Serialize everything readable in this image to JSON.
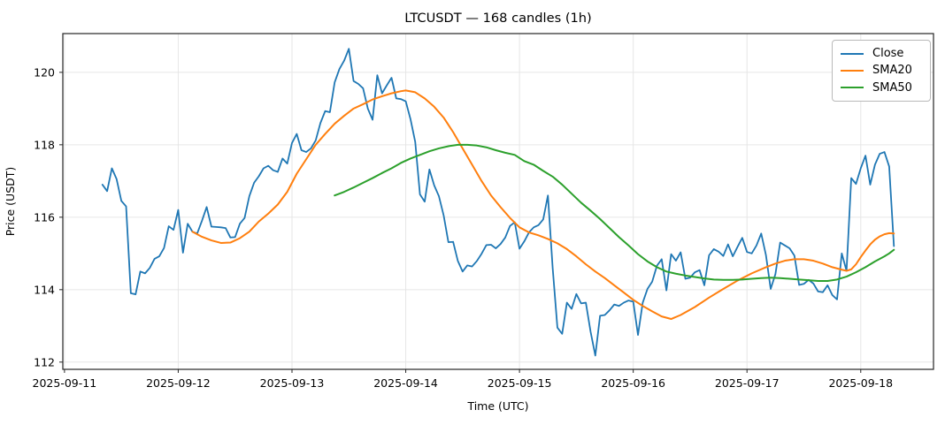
{
  "chart": {
    "title": "LTCUSDT — 168 candles (1h)",
    "xlabel": "Time (UTC)",
    "ylabel": "Price (USDT)"
  },
  "legend": {
    "entries": [
      {
        "label": "Close",
        "color": "#1f77b4"
      },
      {
        "label": "SMA20",
        "color": "#ff7f0e"
      },
      {
        "label": "SMA50",
        "color": "#2ca02c"
      }
    ]
  },
  "chart_data": {
    "type": "line",
    "title": "LTCUSDT — 168 candles (1h)",
    "xlabel": "Time (UTC)",
    "ylabel": "Price (USDT)",
    "grid": true,
    "legend_position": "upper right",
    "x_unit": "hours since first candle (2025-09-11, hourly)",
    "xlim_hours": [
      -8.35,
      175.35
    ],
    "ylim": [
      111.8,
      121.07
    ],
    "y_ticks": [
      112,
      114,
      116,
      118,
      120
    ],
    "x_ticks": [
      {
        "label": "2025-09-11",
        "hour": -8
      },
      {
        "label": "2025-09-12",
        "hour": 16
      },
      {
        "label": "2025-09-13",
        "hour": 40
      },
      {
        "label": "2025-09-14",
        "hour": 64
      },
      {
        "label": "2025-09-15",
        "hour": 88
      },
      {
        "label": "2025-09-16",
        "hour": 112
      },
      {
        "label": "2025-09-17",
        "hour": 136
      },
      {
        "label": "2025-09-18",
        "hour": 160
      }
    ],
    "series": [
      {
        "name": "Close",
        "color": "#1f77b4",
        "line_width": 1.8,
        "start_hour": 0,
        "step_hours": 1,
        "values": [
          116.9,
          116.72,
          117.35,
          117.05,
          116.45,
          116.3,
          113.9,
          113.87,
          114.5,
          114.45,
          114.6,
          114.85,
          114.92,
          115.15,
          115.75,
          115.65,
          116.2,
          115.02,
          115.82,
          115.6,
          115.55,
          115.9,
          116.28,
          115.74,
          115.73,
          115.72,
          115.7,
          115.44,
          115.45,
          115.82,
          115.98,
          116.58,
          116.95,
          117.13,
          117.35,
          117.42,
          117.3,
          117.25,
          117.62,
          117.48,
          118.05,
          118.3,
          117.85,
          117.8,
          117.9,
          118.12,
          118.6,
          118.93,
          118.9,
          119.72,
          120.09,
          120.32,
          120.65,
          119.76,
          119.68,
          119.56,
          119.0,
          118.69,
          119.92,
          119.42,
          119.64,
          119.85,
          119.28,
          119.26,
          119.2,
          118.71,
          118.08,
          116.63,
          116.43,
          117.32,
          116.88,
          116.58,
          116.05,
          115.31,
          115.32,
          114.79,
          114.5,
          114.67,
          114.64,
          114.79,
          114.99,
          115.23,
          115.24,
          115.14,
          115.26,
          115.44,
          115.76,
          115.86,
          115.13,
          115.33,
          115.58,
          115.72,
          115.78,
          115.94,
          116.6,
          114.6,
          112.95,
          112.78,
          113.64,
          113.47,
          113.88,
          113.62,
          113.64,
          112.84,
          112.18,
          113.28,
          113.3,
          113.43,
          113.59,
          113.55,
          113.64,
          113.7,
          113.67,
          112.75,
          113.64,
          114.02,
          114.22,
          114.66,
          114.84,
          113.98,
          114.98,
          114.8,
          115.03,
          114.3,
          114.33,
          114.48,
          114.54,
          114.12,
          114.95,
          115.12,
          115.05,
          114.93,
          115.25,
          114.92,
          115.18,
          115.43,
          115.04,
          115.0,
          115.22,
          115.55,
          114.95,
          114.02,
          114.43,
          115.3,
          115.22,
          115.14,
          114.94,
          114.13,
          114.16,
          114.27,
          114.17,
          113.95,
          113.93,
          114.12,
          113.85,
          113.73,
          115.0,
          114.52,
          117.08,
          116.92,
          117.35,
          117.7,
          116.9,
          117.45,
          117.75,
          117.8,
          117.4,
          115.2
        ]
      },
      {
        "name": "SMA20",
        "color": "#ff7f0e",
        "line_width": 2.0,
        "points": [
          [
            19,
            115.6
          ],
          [
            21,
            115.46
          ],
          [
            23,
            115.36
          ],
          [
            25,
            115.29
          ],
          [
            27,
            115.3
          ],
          [
            29,
            115.42
          ],
          [
            31,
            115.6
          ],
          [
            33,
            115.88
          ],
          [
            35,
            116.1
          ],
          [
            37,
            116.35
          ],
          [
            39,
            116.7
          ],
          [
            41,
            117.2
          ],
          [
            43,
            117.6
          ],
          [
            45,
            118.0
          ],
          [
            47,
            118.3
          ],
          [
            49,
            118.58
          ],
          [
            51,
            118.8
          ],
          [
            53,
            119.0
          ],
          [
            55,
            119.12
          ],
          [
            57,
            119.25
          ],
          [
            59,
            119.34
          ],
          [
            61,
            119.42
          ],
          [
            63,
            119.48
          ],
          [
            64,
            119.5
          ],
          [
            66,
            119.45
          ],
          [
            68,
            119.28
          ],
          [
            70,
            119.05
          ],
          [
            72,
            118.75
          ],
          [
            74,
            118.35
          ],
          [
            76,
            117.9
          ],
          [
            78,
            117.45
          ],
          [
            80,
            117.0
          ],
          [
            82,
            116.6
          ],
          [
            84,
            116.28
          ],
          [
            86,
            115.98
          ],
          [
            88,
            115.72
          ],
          [
            90,
            115.58
          ],
          [
            92,
            115.5
          ],
          [
            94,
            115.4
          ],
          [
            96,
            115.28
          ],
          [
            98,
            115.12
          ],
          [
            100,
            114.92
          ],
          [
            102,
            114.7
          ],
          [
            104,
            114.5
          ],
          [
            106,
            114.32
          ],
          [
            108,
            114.12
          ],
          [
            110,
            113.92
          ],
          [
            112,
            113.72
          ],
          [
            114,
            113.55
          ],
          [
            116,
            113.4
          ],
          [
            118,
            113.26
          ],
          [
            120,
            113.19
          ],
          [
            122,
            113.3
          ],
          [
            125,
            113.52
          ],
          [
            128,
            113.78
          ],
          [
            131,
            114.02
          ],
          [
            134,
            114.25
          ],
          [
            137,
            114.45
          ],
          [
            140,
            114.62
          ],
          [
            142,
            114.72
          ],
          [
            144,
            114.8
          ],
          [
            146,
            114.84
          ],
          [
            148,
            114.84
          ],
          [
            150,
            114.8
          ],
          [
            152,
            114.72
          ],
          [
            154,
            114.62
          ],
          [
            156,
            114.55
          ],
          [
            157,
            114.52
          ],
          [
            158,
            114.56
          ],
          [
            159,
            114.7
          ],
          [
            160,
            114.9
          ],
          [
            161,
            115.08
          ],
          [
            162,
            115.25
          ],
          [
            163,
            115.38
          ],
          [
            164,
            115.47
          ],
          [
            165,
            115.53
          ],
          [
            166,
            115.56
          ],
          [
            167,
            115.55
          ]
        ]
      },
      {
        "name": "SMA50",
        "color": "#2ca02c",
        "line_width": 2.0,
        "points": [
          [
            49,
            116.6
          ],
          [
            51,
            116.7
          ],
          [
            53,
            116.82
          ],
          [
            55,
            116.95
          ],
          [
            57,
            117.08
          ],
          [
            59,
            117.22
          ],
          [
            61,
            117.35
          ],
          [
            63,
            117.5
          ],
          [
            65,
            117.62
          ],
          [
            67,
            117.72
          ],
          [
            69,
            117.82
          ],
          [
            71,
            117.9
          ],
          [
            73,
            117.96
          ],
          [
            75,
            118.0
          ],
          [
            77,
            118.0
          ],
          [
            79,
            117.98
          ],
          [
            81,
            117.93
          ],
          [
            83,
            117.85
          ],
          [
            85,
            117.78
          ],
          [
            87,
            117.72
          ],
          [
            89,
            117.55
          ],
          [
            91,
            117.45
          ],
          [
            93,
            117.28
          ],
          [
            95,
            117.12
          ],
          [
            97,
            116.9
          ],
          [
            99,
            116.65
          ],
          [
            101,
            116.4
          ],
          [
            103,
            116.18
          ],
          [
            105,
            115.95
          ],
          [
            107,
            115.7
          ],
          [
            109,
            115.45
          ],
          [
            111,
            115.22
          ],
          [
            113,
            114.98
          ],
          [
            115,
            114.78
          ],
          [
            117,
            114.62
          ],
          [
            119,
            114.5
          ],
          [
            121,
            114.44
          ],
          [
            123,
            114.39
          ],
          [
            125,
            114.35
          ],
          [
            127,
            114.31
          ],
          [
            129,
            114.28
          ],
          [
            131,
            114.27
          ],
          [
            133,
            114.27
          ],
          [
            135,
            114.28
          ],
          [
            137,
            114.3
          ],
          [
            139,
            114.32
          ],
          [
            141,
            114.33
          ],
          [
            143,
            114.32
          ],
          [
            145,
            114.3
          ],
          [
            147,
            114.28
          ],
          [
            149,
            114.26
          ],
          [
            151,
            114.24
          ],
          [
            153,
            114.24
          ],
          [
            155,
            114.28
          ],
          [
            157,
            114.36
          ],
          [
            159,
            114.48
          ],
          [
            161,
            114.62
          ],
          [
            163,
            114.78
          ],
          [
            165,
            114.92
          ],
          [
            166,
            115.0
          ],
          [
            167,
            115.1
          ]
        ]
      }
    ]
  }
}
